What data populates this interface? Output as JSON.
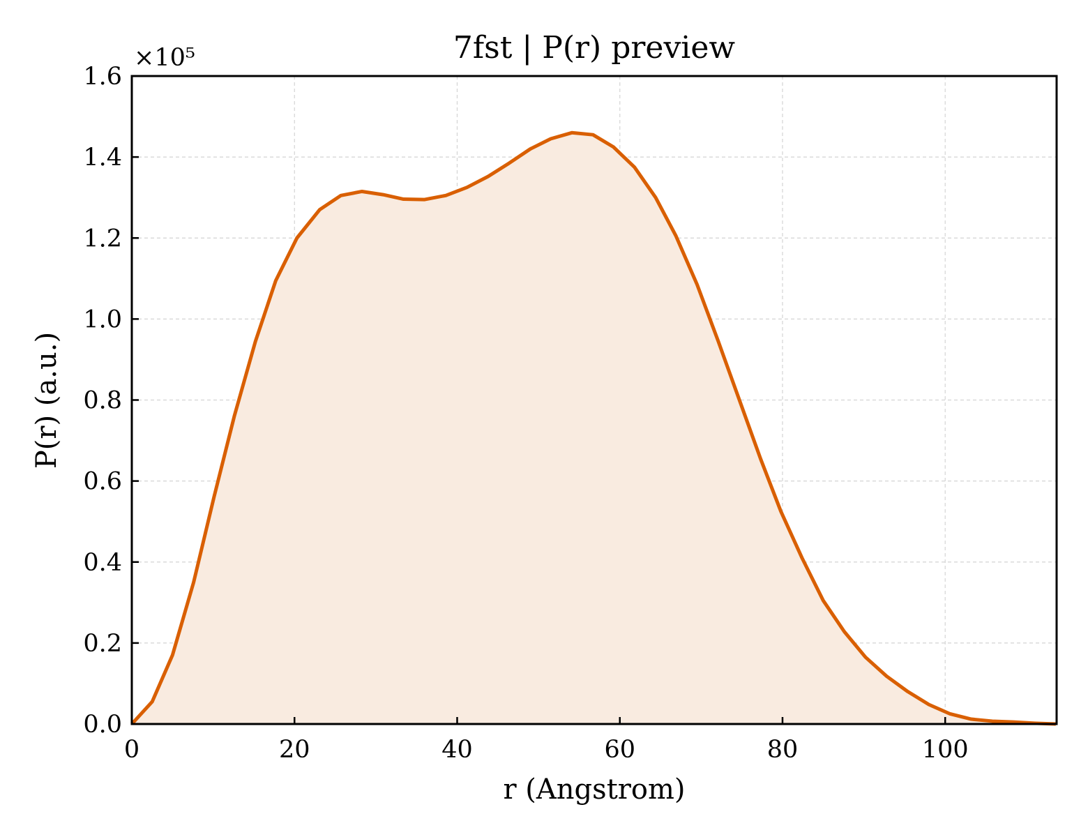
{
  "chart_data": {
    "type": "area",
    "title": "7fst | P(r) preview",
    "xlabel": "r (Angstrom)",
    "ylabel": "P(r) (a.u.)",
    "y_offset_label": "×10⁵",
    "xlim": [
      0,
      113.7
    ],
    "ylim": [
      0,
      1.6
    ],
    "x_ticks": [
      0,
      20,
      40,
      60,
      80,
      100
    ],
    "y_ticks": [
      0.0,
      0.2,
      0.4,
      0.6,
      0.8,
      1.0,
      1.2,
      1.4,
      1.6
    ],
    "x_tick_labels": [
      "0",
      "20",
      "40",
      "60",
      "80",
      "100"
    ],
    "y_tick_labels": [
      "0.0",
      "0.2",
      "0.4",
      "0.6",
      "0.8",
      "1.0",
      "1.2",
      "1.4",
      "1.6"
    ],
    "grid": true,
    "line_color": "#d95f02",
    "fill_color": "#f9ebe0",
    "series": [
      {
        "x": [
          0,
          2.5,
          5.0,
          7.6,
          10.1,
          12.6,
          15.2,
          17.7,
          20.3,
          23.1,
          25.7,
          28.3,
          30.9,
          33.4,
          36.0,
          38.6,
          41.2,
          43.8,
          46.4,
          49.0,
          51.5,
          54.1,
          56.7,
          59.2,
          61.8,
          64.4,
          66.9,
          69.5,
          72.1,
          74.7,
          77.3,
          79.8,
          82.4,
          85.0,
          87.6,
          90.2,
          92.8,
          95.4,
          98.0,
          100.6,
          103.2,
          105.8,
          108.4,
          111.0,
          113.6
        ],
        "y": [
          0.0,
          0.055,
          0.17,
          0.35,
          0.56,
          0.76,
          0.945,
          1.095,
          1.2,
          1.27,
          1.305,
          1.315,
          1.307,
          1.296,
          1.295,
          1.305,
          1.325,
          1.352,
          1.385,
          1.42,
          1.445,
          1.46,
          1.455,
          1.425,
          1.375,
          1.3,
          1.205,
          1.085,
          0.945,
          0.8,
          0.655,
          0.525,
          0.41,
          0.305,
          0.228,
          0.165,
          0.118,
          0.08,
          0.048,
          0.025,
          0.012,
          0.007,
          0.005,
          0.002,
          0.0
        ]
      }
    ]
  }
}
